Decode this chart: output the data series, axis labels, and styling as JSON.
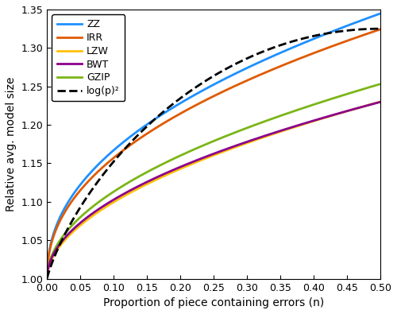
{
  "title": "",
  "xlabel": "Proportion of piece containing errors (n)",
  "ylabel": "Relative avg. model size",
  "xlim": [
    0,
    0.5
  ],
  "ylim": [
    1.0,
    1.35
  ],
  "yticks": [
    1.0,
    1.05,
    1.1,
    1.15,
    1.2,
    1.25,
    1.3,
    1.35
  ],
  "xticks": [
    0,
    0.05,
    0.1,
    0.15,
    0.2,
    0.25,
    0.3,
    0.35,
    0.4,
    0.45,
    0.5
  ],
  "curves": {
    "ZZ": {
      "color": "#1E90FF",
      "lw": 2.0,
      "a": 0.49,
      "b": 2.8
    },
    "IRR": {
      "color": "#E05A00",
      "lw": 2.0,
      "a": 0.44,
      "b": 2.6
    },
    "GZIP": {
      "color": "#7CB518",
      "lw": 2.0,
      "a": 0.31,
      "b": 2.0
    },
    "LZW": {
      "color": "#FFC107",
      "lw": 2.0,
      "a": 0.275,
      "b": 1.8
    },
    "BWT": {
      "color": "#8B008B",
      "lw": 2.0,
      "a": 0.285,
      "b": 2.1
    }
  },
  "log_color": "#000000",
  "log_lw": 2.0,
  "log_scale": 0.325,
  "legend_order": [
    "ZZ",
    "IRR",
    "LZW",
    "BWT",
    "GZIP",
    "log(p)²"
  ],
  "legend_loc": "upper left",
  "background_color": "#ffffff"
}
